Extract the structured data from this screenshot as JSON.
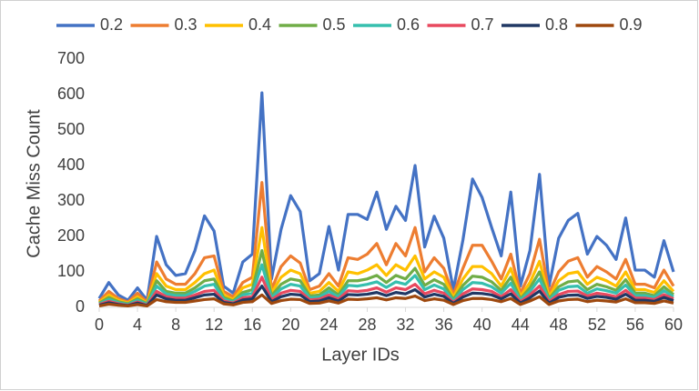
{
  "chart_data": {
    "type": "line",
    "x_label": "Layer IDs",
    "y_label": "Cache Miss Count",
    "x": [
      0,
      1,
      2,
      3,
      4,
      5,
      6,
      7,
      8,
      9,
      10,
      11,
      12,
      13,
      14,
      15,
      16,
      17,
      18,
      19,
      20,
      21,
      22,
      23,
      24,
      25,
      26,
      27,
      28,
      29,
      30,
      31,
      32,
      33,
      34,
      35,
      36,
      37,
      38,
      39,
      40,
      41,
      42,
      43,
      44,
      45,
      46,
      47,
      48,
      49,
      50,
      51,
      52,
      53,
      54,
      55,
      56,
      57,
      58,
      59,
      60
    ],
    "xlim": [
      0,
      60
    ],
    "xticks": [
      0,
      4,
      8,
      12,
      16,
      20,
      24,
      28,
      32,
      36,
      40,
      44,
      48,
      52,
      56,
      60
    ],
    "ylim": [
      0,
      700
    ],
    "yticks": [
      0,
      100,
      200,
      300,
      400,
      500,
      600,
      700
    ],
    "grid": false,
    "legend": "top",
    "series": [
      {
        "name": "0.2",
        "color": "#4472c4",
        "values": [
          25,
          70,
          35,
          20,
          55,
          20,
          200,
          120,
          90,
          95,
          160,
          258,
          215,
          60,
          40,
          128,
          150,
          605,
          80,
          220,
          315,
          270,
          75,
          95,
          228,
          105,
          262,
          262,
          248,
          325,
          220,
          285,
          245,
          400,
          170,
          257,
          195,
          50,
          190,
          362,
          310,
          225,
          145,
          325,
          60,
          160,
          375,
          60,
          195,
          245,
          265,
          150,
          200,
          175,
          135,
          252,
          105,
          105,
          85,
          188,
          100
        ]
      },
      {
        "name": "0.3",
        "color": "#ed7d31",
        "values": [
          18,
          45,
          25,
          15,
          40,
          15,
          128,
          80,
          65,
          65,
          95,
          140,
          145,
          45,
          30,
          70,
          85,
          352,
          50,
          115,
          145,
          125,
          50,
          60,
          95,
          60,
          140,
          135,
          150,
          180,
          120,
          180,
          145,
          225,
          100,
          140,
          110,
          35,
          110,
          175,
          175,
          130,
          80,
          150,
          40,
          95,
          192,
          40,
          100,
          130,
          140,
          85,
          115,
          100,
          80,
          135,
          65,
          65,
          55,
          105,
          60
        ]
      },
      {
        "name": "0.4",
        "color": "#ffc000",
        "values": [
          14,
          35,
          20,
          12,
          30,
          12,
          95,
          60,
          50,
          50,
          70,
          95,
          105,
          35,
          22,
          55,
          65,
          225,
          40,
          85,
          105,
          95,
          40,
          45,
          70,
          45,
          100,
          95,
          105,
          120,
          90,
          120,
          105,
          145,
          80,
          100,
          85,
          28,
          80,
          115,
          115,
          95,
          60,
          110,
          30,
          70,
          130,
          30,
          75,
          95,
          100,
          65,
          85,
          75,
          60,
          100,
          50,
          50,
          42,
          75,
          45
        ]
      },
      {
        "name": "0.5",
        "color": "#70ad47",
        "values": [
          12,
          28,
          16,
          10,
          24,
          10,
          75,
          45,
          40,
          40,
          55,
          75,
          80,
          28,
          18,
          42,
          50,
          160,
          32,
          65,
          80,
          75,
          32,
          35,
          55,
          35,
          75,
          75,
          80,
          90,
          70,
          90,
          80,
          110,
          62,
          78,
          65,
          22,
          62,
          88,
          85,
          72,
          48,
          85,
          24,
          55,
          100,
          24,
          58,
          72,
          75,
          50,
          65,
          58,
          48,
          78,
          40,
          40,
          33,
          58,
          36
        ]
      },
      {
        "name": "0.6",
        "color": "#36bfae",
        "values": [
          10,
          22,
          13,
          8,
          20,
          8,
          60,
          38,
          33,
          33,
          45,
          60,
          65,
          23,
          15,
          35,
          40,
          120,
          27,
          52,
          65,
          60,
          27,
          29,
          45,
          29,
          62,
          60,
          65,
          72,
          56,
          72,
          65,
          90,
          50,
          63,
          52,
          18,
          50,
          70,
          68,
          58,
          40,
          68,
          20,
          45,
          80,
          20,
          48,
          58,
          60,
          40,
          52,
          47,
          40,
          63,
          33,
          33,
          28,
          47,
          30
        ]
      },
      {
        "name": "0.7",
        "color": "#e8495f",
        "values": [
          8,
          17,
          10,
          6,
          15,
          6,
          45,
          30,
          26,
          26,
          35,
          45,
          48,
          18,
          12,
          27,
          30,
          85,
          21,
          40,
          48,
          45,
          21,
          23,
          35,
          23,
          47,
          45,
          48,
          55,
          43,
          55,
          50,
          65,
          38,
          48,
          40,
          14,
          38,
          52,
          50,
          45,
          30,
          50,
          16,
          35,
          60,
          16,
          36,
          45,
          46,
          32,
          40,
          36,
          30,
          48,
          26,
          26,
          22,
          36,
          24
        ]
      },
      {
        "name": "0.8",
        "color": "#203864",
        "values": [
          6,
          13,
          8,
          5,
          12,
          5,
          35,
          24,
          20,
          20,
          27,
          35,
          37,
          14,
          10,
          21,
          24,
          60,
          16,
          30,
          37,
          35,
          16,
          18,
          27,
          18,
          36,
          35,
          37,
          42,
          33,
          42,
          38,
          50,
          29,
          37,
          31,
          11,
          29,
          40,
          39,
          35,
          24,
          38,
          12,
          27,
          46,
          12,
          28,
          34,
          35,
          25,
          31,
          28,
          23,
          37,
          20,
          20,
          17,
          28,
          19
        ]
      },
      {
        "name": "0.9",
        "color": "#9e480e",
        "values": [
          4,
          9,
          6,
          4,
          8,
          4,
          22,
          16,
          14,
          14,
          18,
          22,
          24,
          10,
          7,
          14,
          16,
          35,
          11,
          19,
          23,
          22,
          11,
          12,
          18,
          12,
          23,
          22,
          24,
          27,
          21,
          27,
          25,
          32,
          19,
          24,
          20,
          8,
          19,
          25,
          25,
          22,
          16,
          25,
          8,
          18,
          30,
          8,
          18,
          22,
          23,
          16,
          20,
          18,
          15,
          24,
          13,
          13,
          11,
          18,
          12
        ]
      }
    ]
  }
}
